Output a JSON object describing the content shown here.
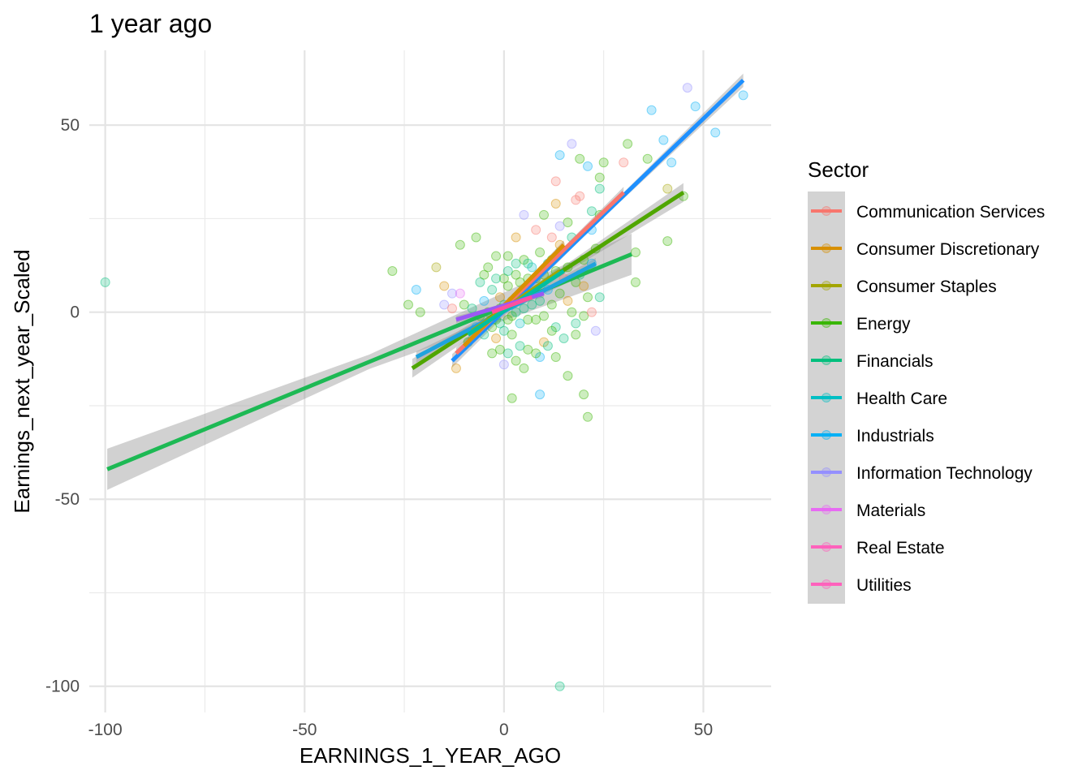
{
  "chart_data": {
    "type": "scatter",
    "title": "1 year ago",
    "xlabel": "EARNINGS_1_YEAR_AGO",
    "ylabel": "Earnings_next_year_Scaled",
    "xlim": [
      -104,
      67
    ],
    "ylim": [
      -107,
      70
    ],
    "x_ticks": [
      -100,
      -50,
      0,
      50
    ],
    "y_ticks": [
      -100,
      -50,
      0,
      50
    ],
    "x_minor": [
      -75,
      -25,
      25
    ],
    "y_minor": [
      -75,
      -25,
      25
    ],
    "grid": true,
    "legend": {
      "title": "Sector",
      "position": "right",
      "entries": [
        {
          "name": "Communication Services",
          "color": "#F8766D"
        },
        {
          "name": "Consumer Discretionary",
          "color": "#D89000"
        },
        {
          "name": "Consumer Staples",
          "color": "#A3A500"
        },
        {
          "name": "Energy",
          "color": "#39B600"
        },
        {
          "name": "Financials",
          "color": "#00BF7D"
        },
        {
          "name": "Health Care",
          "color": "#00BFC4"
        },
        {
          "name": "Industrials",
          "color": "#00B0F6"
        },
        {
          "name": "Information Technology",
          "color": "#9590FF"
        },
        {
          "name": "Materials",
          "color": "#E76BF3"
        },
        {
          "name": "Real Estate",
          "color": "#FF62BC"
        },
        {
          "name": "Utilities",
          "color": "#FF62BC"
        }
      ]
    },
    "regression_lines": [
      {
        "sector": "Financials",
        "color": "#1DB954",
        "x": [
          -99.5,
          32
        ],
        "y": [
          -42,
          15.5
        ],
        "band": 5.5
      },
      {
        "sector": "Energy",
        "color": "#4FA600",
        "x": [
          -23,
          45
        ],
        "y": [
          -15,
          32
        ],
        "band": 2.5
      },
      {
        "sector": "Industrials",
        "color": "#1FA3DE",
        "x": [
          -22,
          23
        ],
        "y": [
          -12,
          13
        ],
        "band": 1.5
      },
      {
        "sector": "Information Technology",
        "color": "#1E90FF",
        "x": [
          -13,
          60
        ],
        "y": [
          -13,
          62
        ],
        "band": 1.8
      },
      {
        "sector": "Communication Services",
        "color": "#F8766D",
        "x": [
          -12,
          30
        ],
        "y": [
          -11,
          32
        ],
        "band": 1.5
      },
      {
        "sector": "Consumer Discretionary",
        "color": "#D89000",
        "x": [
          -10,
          15
        ],
        "y": [
          -9,
          18
        ],
        "band": 1.2
      },
      {
        "sector": "Consumer Staples",
        "color": "#A3A500",
        "x": [
          -8,
          14
        ],
        "y": [
          -5,
          11
        ],
        "band": 1.2
      },
      {
        "sector": "Health Care",
        "color": "#00BFA0",
        "x": [
          -9,
          15
        ],
        "y": [
          -6,
          11
        ],
        "band": 1.2
      },
      {
        "sector": "Materials",
        "color": "#9B59F5",
        "x": [
          -12,
          10
        ],
        "y": [
          -2,
          5
        ],
        "band": 1.0
      },
      {
        "sector": "Utilities",
        "color": "#FF4F9E",
        "x": [
          -3,
          7
        ],
        "y": [
          0,
          4
        ],
        "band": 0.8
      }
    ],
    "points": [
      {
        "x": -100,
        "y": 8,
        "c": 4
      },
      {
        "x": 14,
        "y": -100,
        "c": 4
      },
      {
        "x": 46,
        "y": 60,
        "c": 7
      },
      {
        "x": 60,
        "y": 58,
        "c": 6
      },
      {
        "x": 48,
        "y": 55,
        "c": 6
      },
      {
        "x": 53,
        "y": 48,
        "c": 6
      },
      {
        "x": 37,
        "y": 54,
        "c": 6
      },
      {
        "x": 40,
        "y": 46,
        "c": 6
      },
      {
        "x": 42,
        "y": 40,
        "c": 6
      },
      {
        "x": 17,
        "y": 45,
        "c": 7
      },
      {
        "x": 14,
        "y": 42,
        "c": 6
      },
      {
        "x": 31,
        "y": 45,
        "c": 3
      },
      {
        "x": 36,
        "y": 41,
        "c": 3
      },
      {
        "x": 19,
        "y": 41,
        "c": 3
      },
      {
        "x": 21,
        "y": 39,
        "c": 6
      },
      {
        "x": 25,
        "y": 40,
        "c": 3
      },
      {
        "x": 30,
        "y": 40,
        "c": 0
      },
      {
        "x": 24,
        "y": 36,
        "c": 3
      },
      {
        "x": 24,
        "y": 33,
        "c": 4
      },
      {
        "x": 13,
        "y": 35,
        "c": 0
      },
      {
        "x": 41,
        "y": 33,
        "c": 2
      },
      {
        "x": 45,
        "y": 31,
        "c": 3
      },
      {
        "x": 19,
        "y": 31,
        "c": 0
      },
      {
        "x": 18,
        "y": 30,
        "c": 0
      },
      {
        "x": 13,
        "y": 29,
        "c": 1
      },
      {
        "x": 10,
        "y": 26,
        "c": 3
      },
      {
        "x": 5,
        "y": 26,
        "c": 7
      },
      {
        "x": 22,
        "y": 27,
        "c": 4
      },
      {
        "x": 24,
        "y": 26,
        "c": 3
      },
      {
        "x": 16,
        "y": 24,
        "c": 3
      },
      {
        "x": 22,
        "y": 22,
        "c": 6
      },
      {
        "x": 14,
        "y": 23,
        "c": 7
      },
      {
        "x": 17,
        "y": 20,
        "c": 4
      },
      {
        "x": 23,
        "y": 17,
        "c": 3
      },
      {
        "x": 41,
        "y": 19,
        "c": 3
      },
      {
        "x": 33,
        "y": 16,
        "c": 3
      },
      {
        "x": 20,
        "y": 14,
        "c": 3
      },
      {
        "x": 22,
        "y": 13,
        "c": 6
      },
      {
        "x": 3,
        "y": 20,
        "c": 1
      },
      {
        "x": 8,
        "y": 22,
        "c": 0
      },
      {
        "x": 12,
        "y": 20,
        "c": 0
      },
      {
        "x": 14,
        "y": 18,
        "c": 1
      },
      {
        "x": -7,
        "y": 20,
        "c": 3
      },
      {
        "x": -11,
        "y": 18,
        "c": 3
      },
      {
        "x": -17,
        "y": 12,
        "c": 2
      },
      {
        "x": -28,
        "y": 11,
        "c": 3
      },
      {
        "x": -22,
        "y": 6,
        "c": 6
      },
      {
        "x": -15,
        "y": 7,
        "c": 1
      },
      {
        "x": -13,
        "y": 5,
        "c": 7
      },
      {
        "x": -11,
        "y": 5,
        "c": 8
      },
      {
        "x": -6,
        "y": 8,
        "c": 4
      },
      {
        "x": -4,
        "y": 12,
        "c": 3
      },
      {
        "x": -2,
        "y": 15,
        "c": 3
      },
      {
        "x": 1,
        "y": 15,
        "c": 3
      },
      {
        "x": 3,
        "y": 13,
        "c": 4
      },
      {
        "x": 5,
        "y": 14,
        "c": 3
      },
      {
        "x": 7,
        "y": 12,
        "c": 5
      },
      {
        "x": 9,
        "y": 16,
        "c": 3
      },
      {
        "x": 11,
        "y": 13,
        "c": 4
      },
      {
        "x": 13,
        "y": 11,
        "c": 3
      },
      {
        "x": 15,
        "y": 9,
        "c": 0
      },
      {
        "x": 18,
        "y": 8,
        "c": 3
      },
      {
        "x": 20,
        "y": 7,
        "c": 1
      },
      {
        "x": 21,
        "y": 4,
        "c": 3
      },
      {
        "x": 24,
        "y": 4,
        "c": 4
      },
      {
        "x": 33,
        "y": 8,
        "c": 3
      },
      {
        "x": -24,
        "y": 2,
        "c": 3
      },
      {
        "x": -21,
        "y": 0,
        "c": 3
      },
      {
        "x": -15,
        "y": 2,
        "c": 7
      },
      {
        "x": -13,
        "y": 1,
        "c": 0
      },
      {
        "x": -10,
        "y": 2,
        "c": 3
      },
      {
        "x": -8,
        "y": 1,
        "c": 4
      },
      {
        "x": -6,
        "y": -1,
        "c": 3
      },
      {
        "x": -5,
        "y": 3,
        "c": 6
      },
      {
        "x": -3,
        "y": 6,
        "c": 4
      },
      {
        "x": -2,
        "y": -2,
        "c": 3
      },
      {
        "x": -1,
        "y": 4,
        "c": 1
      },
      {
        "x": 0,
        "y": 2,
        "c": 4
      },
      {
        "x": 1,
        "y": 7,
        "c": 3
      },
      {
        "x": 2,
        "y": -1,
        "c": 3
      },
      {
        "x": 3,
        "y": 4,
        "c": 5
      },
      {
        "x": 4,
        "y": 8,
        "c": 3
      },
      {
        "x": 5,
        "y": 1,
        "c": 4
      },
      {
        "x": 6,
        "y": -2,
        "c": 3
      },
      {
        "x": 7,
        "y": 5,
        "c": 1
      },
      {
        "x": 8,
        "y": 9,
        "c": 3
      },
      {
        "x": 9,
        "y": 3,
        "c": 4
      },
      {
        "x": 10,
        "y": -1,
        "c": 3
      },
      {
        "x": 11,
        "y": 6,
        "c": 6
      },
      {
        "x": 12,
        "y": 2,
        "c": 3
      },
      {
        "x": 13,
        "y": -4,
        "c": 4
      },
      {
        "x": 14,
        "y": 5,
        "c": 3
      },
      {
        "x": 16,
        "y": 3,
        "c": 1
      },
      {
        "x": 17,
        "y": 0,
        "c": 3
      },
      {
        "x": 18,
        "y": -3,
        "c": 4
      },
      {
        "x": 20,
        "y": -1,
        "c": 3
      },
      {
        "x": 22,
        "y": 0,
        "c": 0
      },
      {
        "x": 23,
        "y": -5,
        "c": 7
      },
      {
        "x": 18,
        "y": -6,
        "c": 3
      },
      {
        "x": 15,
        "y": -7,
        "c": 4
      },
      {
        "x": 12,
        "y": -5,
        "c": 3
      },
      {
        "x": 10,
        "y": -8,
        "c": 1
      },
      {
        "x": 9,
        "y": -12,
        "c": 6
      },
      {
        "x": 6,
        "y": -10,
        "c": 3
      },
      {
        "x": 4,
        "y": -9,
        "c": 4
      },
      {
        "x": 3,
        "y": -13,
        "c": 3
      },
      {
        "x": 1,
        "y": -11,
        "c": 4
      },
      {
        "x": 0,
        "y": -14,
        "c": 7
      },
      {
        "x": -1,
        "y": -10,
        "c": 3
      },
      {
        "x": -2,
        "y": -7,
        "c": 1
      },
      {
        "x": -3,
        "y": -11,
        "c": 3
      },
      {
        "x": -5,
        "y": -6,
        "c": 4
      },
      {
        "x": -7,
        "y": -4,
        "c": 6
      },
      {
        "x": -9,
        "y": -8,
        "c": 3
      },
      {
        "x": -12,
        "y": -15,
        "c": 1
      },
      {
        "x": -3,
        "y": -4,
        "c": 3
      },
      {
        "x": 0,
        "y": -5,
        "c": 4
      },
      {
        "x": 2,
        "y": -6,
        "c": 3
      },
      {
        "x": 4,
        "y": -3,
        "c": 5
      },
      {
        "x": 5,
        "y": -15,
        "c": 3
      },
      {
        "x": 8,
        "y": -11,
        "c": 3
      },
      {
        "x": 11,
        "y": -9,
        "c": 4
      },
      {
        "x": 13,
        "y": -12,
        "c": 3
      },
      {
        "x": 16,
        "y": -17,
        "c": 3
      },
      {
        "x": 9,
        "y": -22,
        "c": 6
      },
      {
        "x": 2,
        "y": -23,
        "c": 3
      },
      {
        "x": 20,
        "y": -22,
        "c": 3
      },
      {
        "x": 21,
        "y": -28,
        "c": 3
      },
      {
        "x": 0,
        "y": 9,
        "c": 3
      },
      {
        "x": 1,
        "y": 11,
        "c": 4
      },
      {
        "x": 2,
        "y": 3,
        "c": 3
      },
      {
        "x": 3,
        "y": 0,
        "c": 4
      },
      {
        "x": 5,
        "y": 6,
        "c": 3
      },
      {
        "x": 6,
        "y": 9,
        "c": 3
      },
      {
        "x": 7,
        "y": 2,
        "c": 4
      },
      {
        "x": 8,
        "y": -2,
        "c": 3
      },
      {
        "x": -1,
        "y": 1,
        "c": 3
      },
      {
        "x": -2,
        "y": 9,
        "c": 4
      },
      {
        "x": -4,
        "y": 0,
        "c": 3
      },
      {
        "x": -5,
        "y": 10,
        "c": 3
      },
      {
        "x": -1,
        "y": -3,
        "c": 4
      },
      {
        "x": 1,
        "y": -2,
        "c": 3
      },
      {
        "x": 3,
        "y": 10,
        "c": 3
      },
      {
        "x": 6,
        "y": 13,
        "c": 4
      },
      {
        "x": 10,
        "y": 10,
        "c": 3
      },
      {
        "x": 12,
        "y": 14,
        "c": 3
      },
      {
        "x": 14,
        "y": 16,
        "c": 4
      },
      {
        "x": 16,
        "y": 12,
        "c": 3
      },
      {
        "x": 19,
        "y": 10,
        "c": 4
      }
    ]
  }
}
